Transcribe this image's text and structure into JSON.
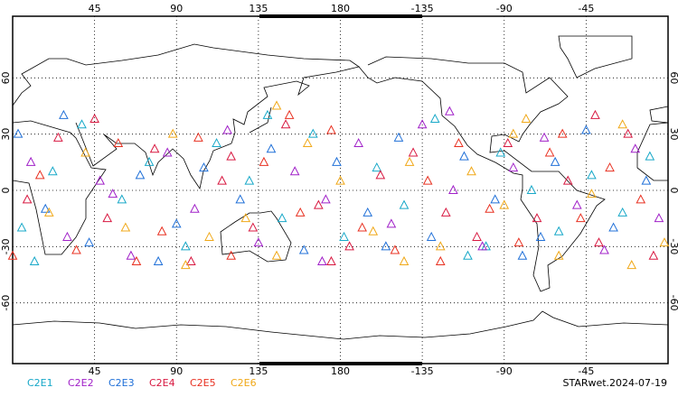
{
  "chart_data": {
    "type": "scatter",
    "xlim": [
      0,
      360
    ],
    "ylim": [
      -90,
      90
    ],
    "xticks": [
      45,
      90,
      135,
      180,
      {
        "value": 225,
        "label": "-135"
      },
      {
        "value": 270,
        "label": "-90"
      },
      {
        "value": 315,
        "label": "-45"
      }
    ],
    "yticks": [
      60,
      30,
      0,
      -30,
      -60
    ],
    "grid": true,
    "footer": "STARwet.2024-07-19",
    "series": [
      {
        "name": "C2E1",
        "color": "#17a8c8",
        "x": [
          5,
          22,
          38,
          60,
          75,
          95,
          112,
          130,
          148,
          165,
          182,
          200,
          215,
          232,
          250,
          268,
          285,
          300,
          318,
          335,
          350,
          12,
          140,
          260
        ],
        "values": [
          -20,
          10,
          35,
          -5,
          15,
          -30,
          25,
          5,
          -15,
          30,
          -25,
          12,
          -8,
          38,
          -35,
          20,
          0,
          -22,
          8,
          -12,
          18,
          -38,
          40,
          -30
        ]
      },
      {
        "name": "C2E2",
        "color": "#a020c8",
        "x": [
          10,
          30,
          48,
          65,
          85,
          100,
          118,
          135,
          155,
          172,
          190,
          208,
          225,
          242,
          258,
          275,
          292,
          310,
          325,
          342,
          355,
          55,
          170,
          240
        ],
        "values": [
          15,
          -25,
          5,
          -35,
          20,
          -10,
          32,
          -28,
          10,
          -5,
          25,
          -18,
          35,
          0,
          -30,
          12,
          28,
          -8,
          -32,
          22,
          -15,
          -2,
          -38,
          42
        ]
      },
      {
        "name": "C2E3",
        "color": "#2070d8",
        "x": [
          3,
          18,
          42,
          70,
          90,
          105,
          125,
          142,
          160,
          178,
          195,
          212,
          230,
          248,
          265,
          280,
          298,
          315,
          330,
          348,
          28,
          80,
          205,
          290
        ],
        "values": [
          30,
          -10,
          -28,
          8,
          -18,
          12,
          -5,
          22,
          -32,
          15,
          -12,
          28,
          -25,
          18,
          -5,
          -35,
          15,
          32,
          -20,
          5,
          40,
          -38,
          -30,
          -25
        ]
      },
      {
        "name": "C2E4",
        "color": "#d81840",
        "x": [
          8,
          25,
          52,
          78,
          98,
          115,
          132,
          150,
          168,
          185,
          202,
          220,
          238,
          255,
          272,
          288,
          305,
          322,
          338,
          352,
          45,
          120,
          175,
          320
        ],
        "values": [
          -5,
          28,
          -15,
          22,
          -38,
          5,
          -20,
          35,
          -8,
          -30,
          8,
          20,
          -12,
          -25,
          25,
          -15,
          5,
          -28,
          30,
          -35,
          38,
          18,
          -38,
          40
        ]
      },
      {
        "name": "C2E5",
        "color": "#e83020",
        "x": [
          15,
          35,
          58,
          82,
          102,
          120,
          138,
          158,
          175,
          192,
          210,
          228,
          245,
          262,
          278,
          295,
          312,
          328,
          345,
          0,
          68,
          152,
          235,
          302
        ],
        "values": [
          8,
          -32,
          25,
          -22,
          28,
          -35,
          15,
          -12,
          32,
          -20,
          -32,
          5,
          25,
          -10,
          -28,
          20,
          -15,
          12,
          -5,
          -35,
          -38,
          40,
          -38,
          30
        ]
      },
      {
        "name": "C2E6",
        "color": "#f0a818",
        "x": [
          20,
          40,
          62,
          88,
          108,
          128,
          145,
          162,
          180,
          198,
          218,
          235,
          252,
          270,
          282,
          300,
          318,
          335,
          358,
          95,
          145,
          215,
          275,
          340
        ],
        "values": [
          -12,
          20,
          -20,
          30,
          -25,
          -15,
          -35,
          25,
          5,
          -22,
          15,
          -30,
          10,
          -8,
          38,
          -35,
          -2,
          35,
          -28,
          -40,
          45,
          -38,
          30,
          -40
        ]
      }
    ]
  }
}
